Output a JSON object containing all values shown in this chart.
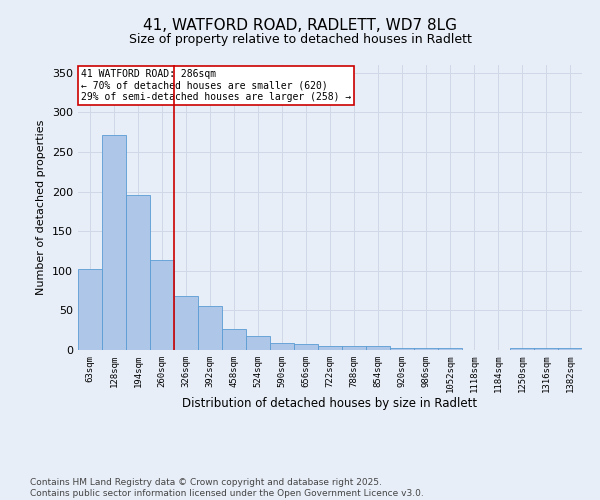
{
  "title1": "41, WATFORD ROAD, RADLETT, WD7 8LG",
  "title2": "Size of property relative to detached houses in Radlett",
  "xlabel": "Distribution of detached houses by size in Radlett",
  "ylabel": "Number of detached properties",
  "categories": [
    "63sqm",
    "128sqm",
    "194sqm",
    "260sqm",
    "326sqm",
    "392sqm",
    "458sqm",
    "524sqm",
    "590sqm",
    "656sqm",
    "722sqm",
    "788sqm",
    "854sqm",
    "920sqm",
    "986sqm",
    "1052sqm",
    "1118sqm",
    "1184sqm",
    "1250sqm",
    "1316sqm",
    "1382sqm"
  ],
  "values": [
    102,
    271,
    196,
    114,
    68,
    55,
    26,
    18,
    9,
    8,
    5,
    5,
    5,
    2,
    3,
    2,
    0,
    0,
    3,
    2,
    2
  ],
  "bar_color": "#aec6e8",
  "bar_edge_color": "#5a9bd4",
  "red_line_index": 3.5,
  "annotation_text": "41 WATFORD ROAD: 286sqm\n← 70% of detached houses are smaller (620)\n29% of semi-detached houses are larger (258) →",
  "annotation_box_color": "#ffffff",
  "annotation_box_edge_color": "#cc0000",
  "red_line_color": "#cc0000",
  "ylim": [
    0,
    360
  ],
  "yticks": [
    0,
    50,
    100,
    150,
    200,
    250,
    300,
    350
  ],
  "grid_color": "#d0d8e8",
  "background_color": "#e8eef8",
  "footer_text": "Contains HM Land Registry data © Crown copyright and database right 2025.\nContains public sector information licensed under the Open Government Licence v3.0.",
  "title1_fontsize": 11,
  "title2_fontsize": 9,
  "annotation_fontsize": 7,
  "footer_fontsize": 6.5
}
